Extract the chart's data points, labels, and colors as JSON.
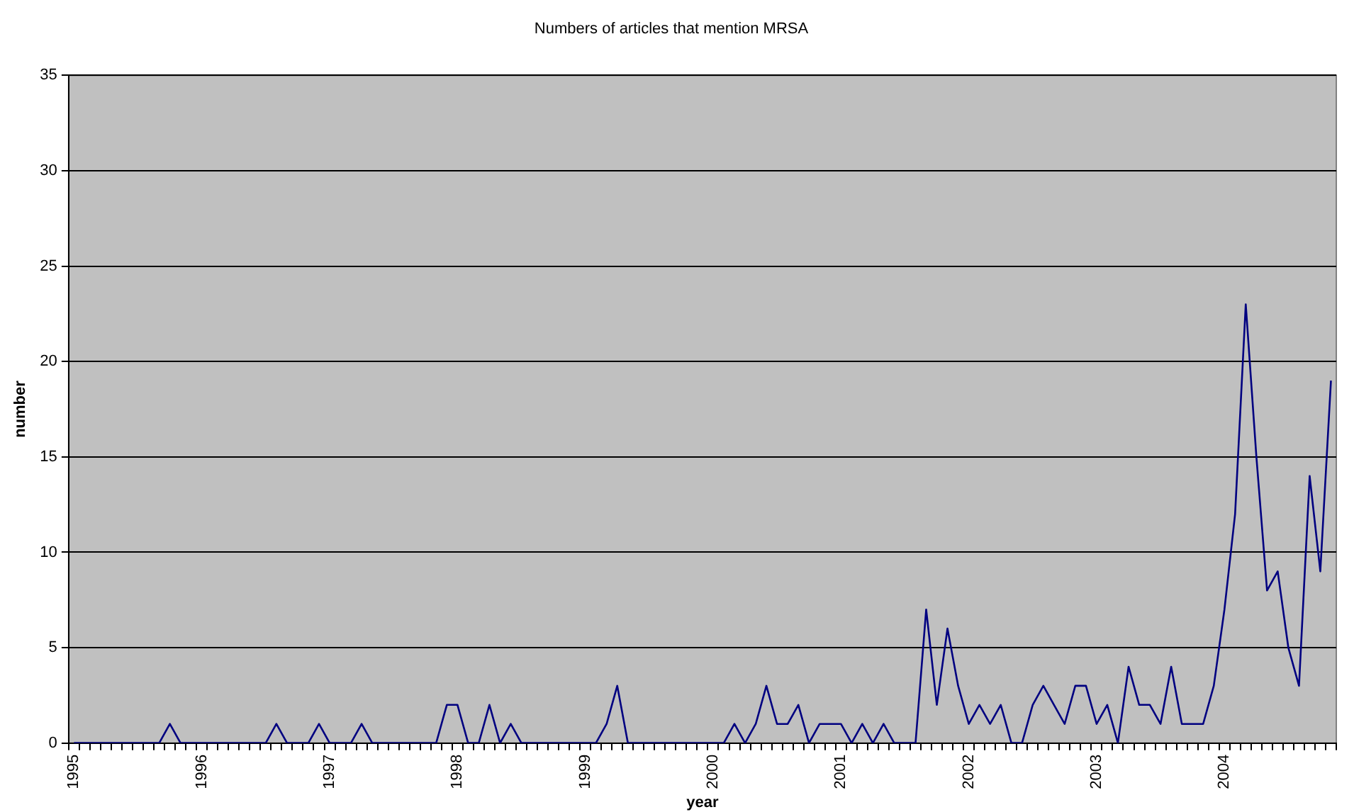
{
  "chart_data": {
    "type": "line",
    "title": "Numbers of articles that mention MRSA",
    "xlabel": "year",
    "ylabel": "number",
    "categories": [
      "1995",
      null,
      null,
      null,
      null,
      null,
      null,
      null,
      null,
      null,
      null,
      null,
      "1996",
      null,
      null,
      null,
      null,
      null,
      null,
      null,
      null,
      null,
      null,
      null,
      "1997",
      null,
      null,
      null,
      null,
      null,
      null,
      null,
      null,
      null,
      null,
      null,
      "1998",
      null,
      null,
      null,
      null,
      null,
      null,
      null,
      null,
      null,
      null,
      null,
      "1999",
      null,
      null,
      null,
      null,
      null,
      null,
      null,
      null,
      null,
      null,
      null,
      "2000",
      null,
      null,
      null,
      null,
      null,
      null,
      null,
      null,
      null,
      null,
      null,
      "2001",
      null,
      null,
      null,
      null,
      null,
      null,
      null,
      null,
      null,
      null,
      null,
      "2002",
      null,
      null,
      null,
      null,
      null,
      null,
      null,
      null,
      null,
      null,
      null,
      "2003",
      null,
      null,
      null,
      null,
      null,
      null,
      null,
      null,
      null,
      null,
      null,
      "2004",
      null,
      null,
      null,
      null,
      null,
      null,
      null,
      null,
      null,
      null
    ],
    "series": [
      {
        "color": "#000080",
        "values": [
          0,
          0,
          0,
          0,
          0,
          0,
          0,
          0,
          0,
          1,
          0,
          0,
          0,
          0,
          0,
          0,
          0,
          0,
          0,
          1,
          0,
          0,
          0,
          1,
          0,
          0,
          0,
          1,
          0,
          0,
          0,
          0,
          0,
          0,
          0,
          2,
          2,
          0,
          0,
          2,
          0,
          1,
          0,
          0,
          0,
          0,
          0,
          0,
          0,
          0,
          1,
          3,
          0,
          0,
          0,
          0,
          0,
          0,
          0,
          0,
          0,
          0,
          1,
          0,
          1,
          3,
          1,
          1,
          2,
          0,
          1,
          1,
          1,
          0,
          1,
          0,
          1,
          0,
          0,
          0,
          7,
          2,
          6,
          3,
          1,
          2,
          1,
          2,
          0,
          0,
          2,
          3,
          2,
          1,
          3,
          3,
          1,
          2,
          0,
          4,
          2,
          2,
          1,
          4,
          1,
          1,
          1,
          3,
          7,
          12,
          23,
          15,
          8,
          9,
          5,
          3,
          14,
          9,
          19
        ]
      }
    ],
    "ylim": [
      0,
      35
    ],
    "yticks": [
      0,
      5,
      10,
      15,
      20,
      25,
      30,
      35
    ],
    "grid": "y",
    "legend": false,
    "marker": "none",
    "line_style": "solid"
  }
}
